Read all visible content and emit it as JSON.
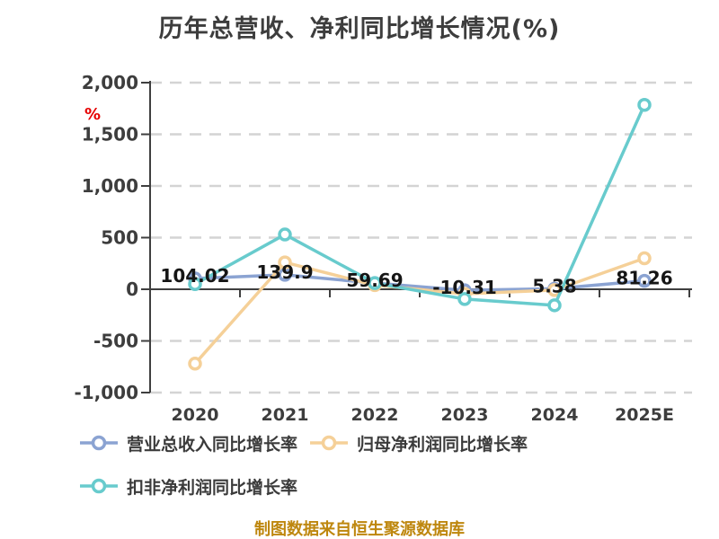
{
  "title": "历年总营收、净利同比增长情况(%)",
  "y_unit": "%",
  "footer": "制图数据来自恒生聚源数据库",
  "chart_data": {
    "type": "line",
    "title": "历年总营收、净利同比增长情况(%)",
    "unit": "%",
    "categories": [
      "2020",
      "2021",
      "2022",
      "2023",
      "2024",
      "2025E"
    ],
    "series": [
      {
        "name": "营业总收入同比增长率",
        "color": "#8BA3D2",
        "values": [
          104.02,
          139.9,
          59.69,
          -10.31,
          5.38,
          81.26
        ],
        "data_labels": [
          "104.02",
          "139.9",
          "59.69",
          "-10.31",
          "5.38",
          "81.26"
        ]
      },
      {
        "name": "归母净利润同比增长率",
        "color": "#F5D098",
        "values": [
          -720,
          260,
          40,
          -45,
          -8,
          300
        ]
      },
      {
        "name": "扣非净利润同比增长率",
        "color": "#68CBCD",
        "values": [
          50,
          530,
          60,
          -95,
          -155,
          1785
        ]
      }
    ],
    "ylim": [
      -1000,
      2000
    ],
    "y_ticks": [
      {
        "value": 2000,
        "label": "2,000"
      },
      {
        "value": 1500,
        "label": "1,500"
      },
      {
        "value": 1000,
        "label": "1,000"
      },
      {
        "value": 500,
        "label": "500"
      },
      {
        "value": 0,
        "label": "0"
      },
      {
        "value": -500,
        "label": "-500"
      },
      {
        "value": -1000,
        "label": "-1,000"
      }
    ],
    "grid": "horizontal dashed",
    "legend_position": "bottom-left",
    "labeled_series": 0
  },
  "colors": {
    "axis": "#3f3f3f",
    "grid": "#d4d4d4",
    "tick_text": "#3d3d3d",
    "data_label_text": "#151515",
    "marker_fill": "#ffffff"
  }
}
